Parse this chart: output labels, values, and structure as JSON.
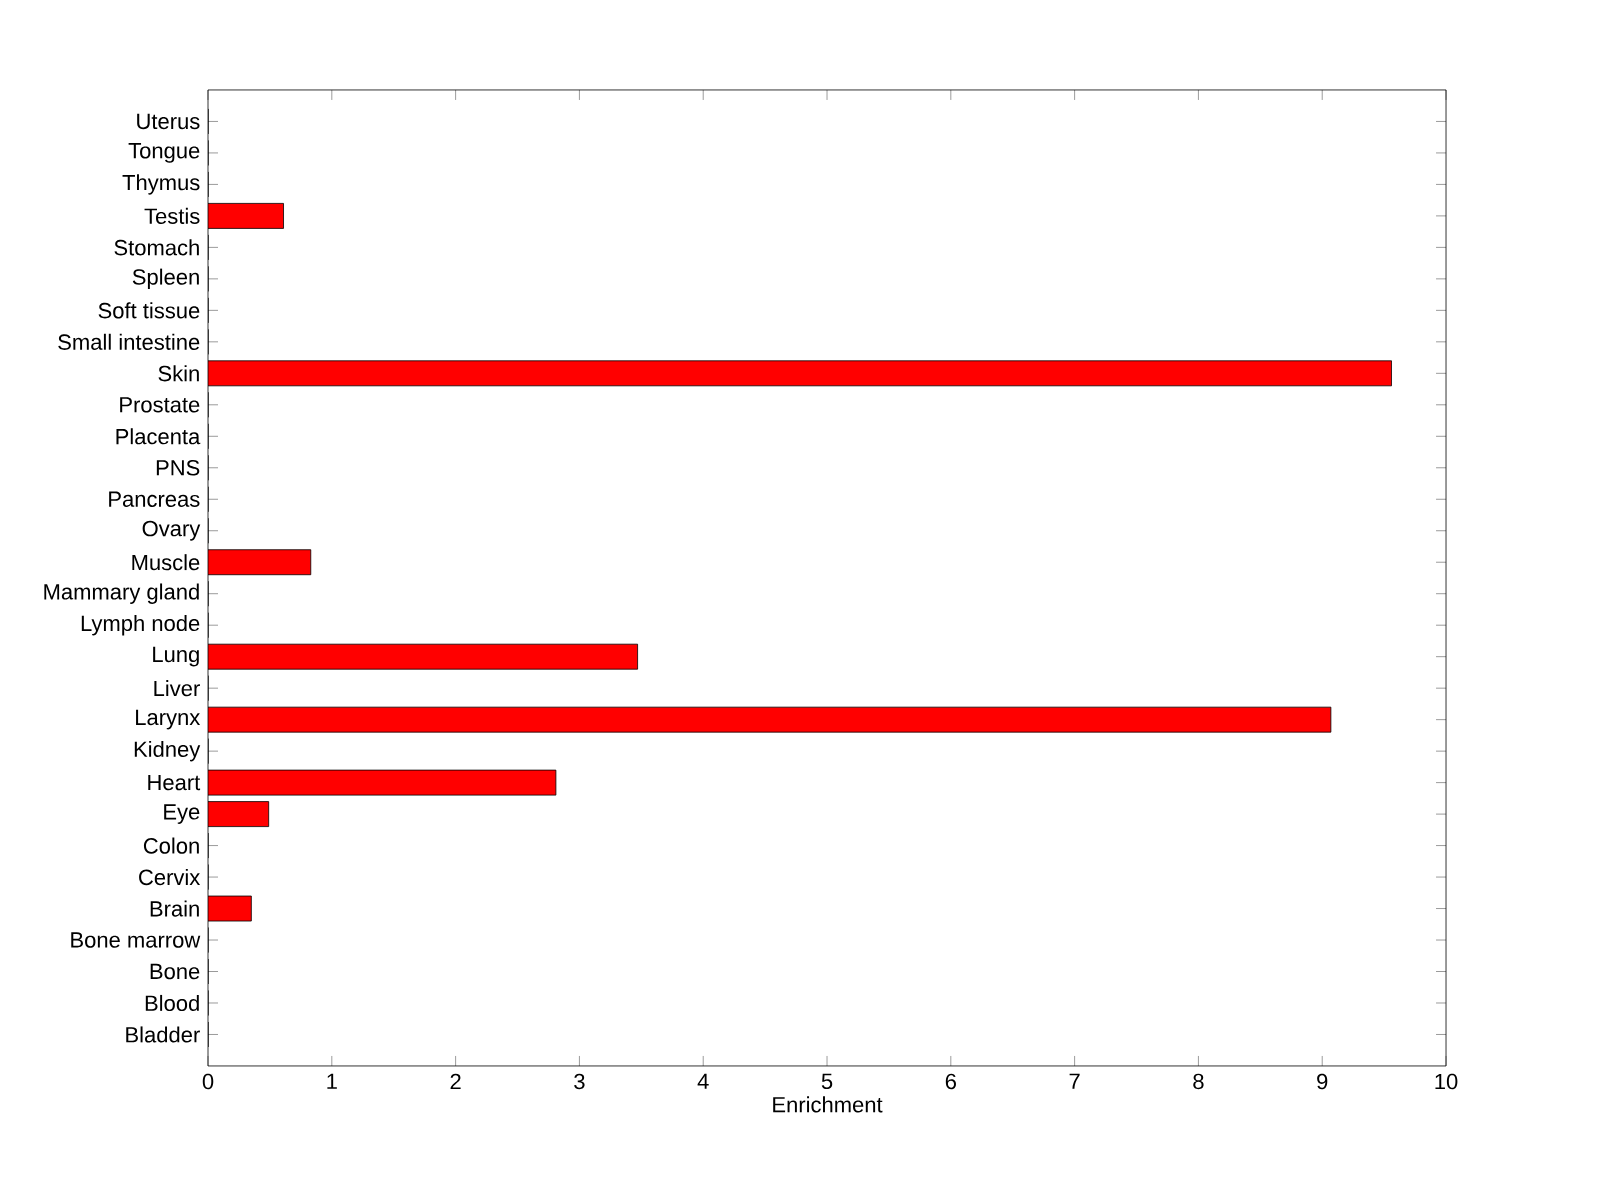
{
  "chart_data": {
    "type": "bar",
    "orientation": "horizontal",
    "xlabel": "Enrichment",
    "categories": [
      "Uterus",
      "Tongue",
      "Thymus",
      "Testis",
      "Stomach",
      "Spleen",
      "Soft tissue",
      "Small intestine",
      "Skin",
      "Prostate",
      "Placenta",
      "PNS",
      "Pancreas",
      "Ovary",
      "Muscle",
      "Mammary gland",
      "Lymph node",
      "Lung",
      "Liver",
      "Larynx",
      "Kidney",
      "Heart",
      "Eye",
      "Colon",
      "Cervix",
      "Brain",
      "Bone marrow",
      "Bone",
      "Blood",
      "Bladder"
    ],
    "values": [
      0,
      0,
      0,
      0.61,
      0,
      0,
      0,
      0,
      9.56,
      0,
      0,
      0,
      0,
      0,
      0.83,
      0,
      0,
      3.47,
      0,
      9.07,
      0,
      2.81,
      0.49,
      0,
      0,
      0.35,
      0,
      0,
      0,
      0
    ],
    "color": "#ff0000",
    "xlim": [
      0,
      10
    ],
    "xticks": [
      0,
      1,
      2,
      3,
      4,
      5,
      6,
      7,
      8,
      9,
      10
    ]
  }
}
